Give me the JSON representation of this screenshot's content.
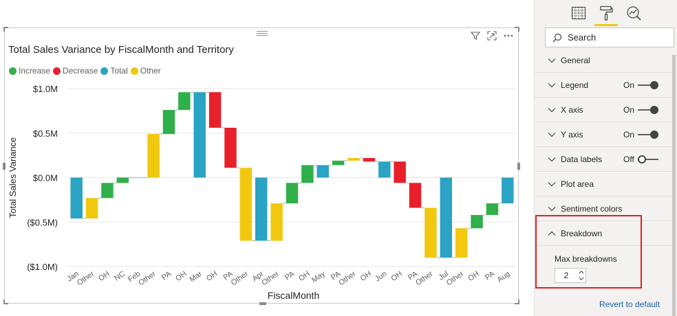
{
  "visual": {
    "title": "Total Sales Variance by FiscalMonth and Territory",
    "header_icons": [
      "filter-icon",
      "focus-mode-icon",
      "more-options-icon"
    ]
  },
  "legend": [
    {
      "label": "Increase",
      "color": "#2fb04a"
    },
    {
      "label": "Decrease",
      "color": "#e8202b"
    },
    {
      "label": "Total",
      "color": "#2ba3c4"
    },
    {
      "label": "Other",
      "color": "#f2c80f"
    }
  ],
  "chart_data": {
    "type": "waterfall",
    "title": "Total Sales Variance by FiscalMonth and Territory",
    "xlabel": "FiscalMonth",
    "ylabel": "Total Sales Variance",
    "ylim": [
      -1.0,
      1.0
    ],
    "yticks": [
      "$1.0M",
      "$0.5M",
      "$0.0M",
      "($0.5M)",
      "($1.0M)"
    ],
    "ytick_values": [
      1.0,
      0.5,
      0.0,
      -0.5,
      -1.0
    ],
    "grid": true,
    "legend_position": "top-left",
    "bars": [
      {
        "label": "Jan",
        "start": 0.0,
        "end": -0.46,
        "kind": "Total"
      },
      {
        "label": "Other",
        "start": -0.46,
        "end": -0.23,
        "kind": "Other"
      },
      {
        "label": "OH",
        "start": -0.23,
        "end": -0.06,
        "kind": "Increase"
      },
      {
        "label": "NC",
        "start": -0.06,
        "end": 0.0,
        "kind": "Increase"
      },
      {
        "label": "Feb",
        "start": 0.0,
        "end": 0.0,
        "kind": "Total"
      },
      {
        "label": "Other",
        "start": 0.0,
        "end": 0.49,
        "kind": "Other"
      },
      {
        "label": "PA",
        "start": 0.49,
        "end": 0.76,
        "kind": "Increase"
      },
      {
        "label": "OH",
        "start": 0.76,
        "end": 0.96,
        "kind": "Increase"
      },
      {
        "label": "Mar",
        "start": 0.0,
        "end": 0.96,
        "kind": "Total"
      },
      {
        "label": "OH",
        "start": 0.96,
        "end": 0.56,
        "kind": "Decrease"
      },
      {
        "label": "PA",
        "start": 0.56,
        "end": 0.11,
        "kind": "Decrease"
      },
      {
        "label": "Other",
        "start": 0.11,
        "end": -0.71,
        "kind": "Other"
      },
      {
        "label": "Apr",
        "start": 0.0,
        "end": -0.71,
        "kind": "Total"
      },
      {
        "label": "Other",
        "start": -0.71,
        "end": -0.29,
        "kind": "Other"
      },
      {
        "label": "PA",
        "start": -0.29,
        "end": -0.06,
        "kind": "Increase"
      },
      {
        "label": "OH",
        "start": -0.06,
        "end": 0.14,
        "kind": "Increase"
      },
      {
        "label": "May",
        "start": 0.0,
        "end": 0.14,
        "kind": "Total"
      },
      {
        "label": "PA",
        "start": 0.14,
        "end": 0.19,
        "kind": "Increase"
      },
      {
        "label": "Other",
        "start": 0.19,
        "end": 0.22,
        "kind": "Other"
      },
      {
        "label": "OH",
        "start": 0.22,
        "end": 0.18,
        "kind": "Decrease"
      },
      {
        "label": "Jun",
        "start": 0.0,
        "end": 0.18,
        "kind": "Total"
      },
      {
        "label": "OH",
        "start": 0.18,
        "end": -0.06,
        "kind": "Decrease"
      },
      {
        "label": "PA",
        "start": -0.06,
        "end": -0.34,
        "kind": "Decrease"
      },
      {
        "label": "Other",
        "start": -0.34,
        "end": -0.9,
        "kind": "Other"
      },
      {
        "label": "Jul",
        "start": 0.0,
        "end": -0.9,
        "kind": "Total"
      },
      {
        "label": "Other",
        "start": -0.9,
        "end": -0.57,
        "kind": "Other"
      },
      {
        "label": "OH",
        "start": -0.57,
        "end": -0.42,
        "kind": "Increase"
      },
      {
        "label": "PA",
        "start": -0.42,
        "end": -0.29,
        "kind": "Increase"
      },
      {
        "label": "Aug",
        "start": 0.0,
        "end": -0.29,
        "kind": "Total"
      }
    ]
  },
  "pane": {
    "tabs": [
      "fields-icon",
      "format-paint-roller-icon",
      "analytics-icon"
    ],
    "active_tab": 1,
    "search_placeholder": "Search",
    "sections": [
      {
        "label": "General",
        "expanded": false
      },
      {
        "label": "Legend",
        "expanded": false,
        "toggle": "On"
      },
      {
        "label": "X axis",
        "expanded": false,
        "toggle": "On"
      },
      {
        "label": "Y axis",
        "expanded": false,
        "toggle": "On"
      },
      {
        "label": "Data labels",
        "expanded": false,
        "toggle": "Off"
      },
      {
        "label": "Plot area",
        "expanded": false
      },
      {
        "label": "Sentiment colors",
        "expanded": false
      },
      {
        "label": "Breakdown",
        "expanded": true
      }
    ],
    "breakdown": {
      "max_label": "Max breakdowns",
      "max_value": "2"
    },
    "revert_label": "Revert to default"
  }
}
